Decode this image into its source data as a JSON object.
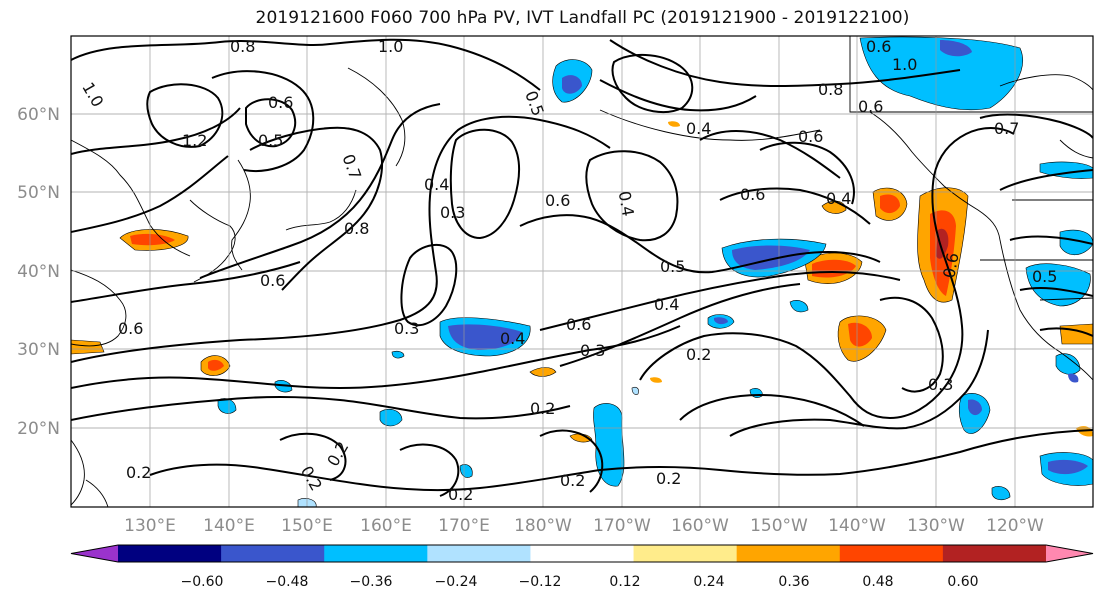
{
  "title": "2019121600 F060 700 hPa PV, IVT Landfall PC (2019121900 - 2019122100)",
  "map": {
    "lat_labels": [
      "60°N",
      "50°N",
      "40°N",
      "30°N",
      "20°N"
    ],
    "lon_labels": [
      "130°E",
      "140°E",
      "150°E",
      "160°E",
      "170°E",
      "180°W",
      "170°W",
      "160°W",
      "150°W",
      "140°W",
      "130°W",
      "120°W"
    ],
    "grid": true,
    "contour_labels": [
      {
        "text": "1.0"
      },
      {
        "text": "0.8"
      },
      {
        "text": "1.0"
      },
      {
        "text": "0.6"
      },
      {
        "text": "0.5"
      },
      {
        "text": "1.2"
      },
      {
        "text": "0.7"
      },
      {
        "text": "0.8"
      },
      {
        "text": "0.6"
      },
      {
        "text": "0.4"
      },
      {
        "text": "0.3"
      },
      {
        "text": "0.6"
      },
      {
        "text": "0.4"
      },
      {
        "text": "0.5"
      },
      {
        "text": "0.4"
      },
      {
        "text": "0.6"
      },
      {
        "text": "0.6"
      },
      {
        "text": "0.4"
      },
      {
        "text": "0.8"
      },
      {
        "text": "0.6"
      },
      {
        "text": "0.6"
      },
      {
        "text": "1.0"
      },
      {
        "text": "0.7"
      },
      {
        "text": "0.6"
      },
      {
        "text": "0.5"
      },
      {
        "text": "0.5"
      },
      {
        "text": "0.3"
      },
      {
        "text": "0.4"
      },
      {
        "text": "0.6"
      },
      {
        "text": "0.4"
      },
      {
        "text": "0.3"
      },
      {
        "text": "0.2"
      },
      {
        "text": "0.3"
      },
      {
        "text": "0.2"
      },
      {
        "text": "0.2"
      },
      {
        "text": "0.2"
      },
      {
        "text": "0.2"
      },
      {
        "text": "0.2"
      },
      {
        "text": "0.2"
      },
      {
        "text": "0.2"
      },
      {
        "text": "0.6"
      }
    ]
  },
  "colorbar": {
    "colors": [
      "#9a33cc",
      "#000080",
      "#3a56cc",
      "#00bfff",
      "#b0e2ff",
      "#ffffff",
      "#ffec8b",
      "#ffa500",
      "#ff4500",
      "#b22222",
      "#ff88b0"
    ],
    "tick_labels": [
      "−0.60",
      "−0.48",
      "−0.36",
      "−0.24",
      "−0.12",
      "0.12",
      "0.24",
      "0.36",
      "0.48",
      "0.60"
    ]
  }
}
